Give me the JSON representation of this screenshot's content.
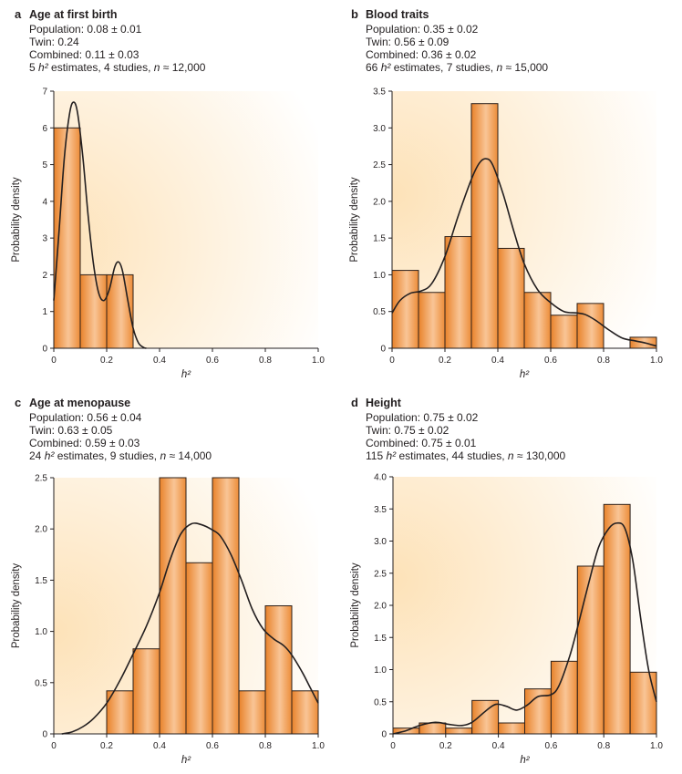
{
  "figure": {
    "accent_colors": {
      "bar_edge": "#e8832a",
      "bar_center": "#f9c596",
      "bar_stroke": "#3a2a1e",
      "background_warm": "#fde6c0",
      "curve": "#231f20"
    }
  },
  "chart_data": [
    {
      "id": "a",
      "type": "bar",
      "letter": "a",
      "title": "Age at first birth",
      "stats": {
        "population": "Population: 0.08 ± 0.01",
        "twin": "Twin: 0.24",
        "combined": "Combined: 0.11 ± 0.03",
        "summary_count": "5",
        "summary_rest": " estimates, 4 studies, ",
        "summary_n": "≈ 12,000"
      },
      "xlabel": "h²",
      "ylabel": "Probability density",
      "xlim": [
        0,
        1.0
      ],
      "ylim": [
        0,
        7
      ],
      "xticks": [
        "0",
        "0.2",
        "0.4",
        "0.6",
        "0.8",
        "1.0"
      ],
      "xtick_values": [
        0,
        0.2,
        0.4,
        0.6,
        0.8,
        1.0
      ],
      "yticks": [
        "0",
        "1",
        "2",
        "3",
        "4",
        "5",
        "6",
        "7"
      ],
      "ytick_values": [
        0,
        1,
        2,
        3,
        4,
        5,
        6,
        7
      ],
      "bin_edges": [
        0,
        0.1,
        0.2,
        0.3,
        0.4,
        0.5,
        0.6,
        0.7,
        0.8,
        0.9,
        1.0
      ],
      "values": [
        6,
        2,
        2,
        0,
        0,
        0,
        0,
        0,
        0,
        0
      ],
      "density_curve": [
        [
          0,
          1.3
        ],
        [
          0.02,
          3.2
        ],
        [
          0.04,
          5.2
        ],
        [
          0.06,
          6.4
        ],
        [
          0.075,
          6.7
        ],
        [
          0.09,
          6.4
        ],
        [
          0.11,
          5.2
        ],
        [
          0.13,
          3.6
        ],
        [
          0.15,
          2.3
        ],
        [
          0.17,
          1.5
        ],
        [
          0.19,
          1.3
        ],
        [
          0.21,
          1.6
        ],
        [
          0.23,
          2.2
        ],
        [
          0.245,
          2.35
        ],
        [
          0.26,
          2.1
        ],
        [
          0.28,
          1.3
        ],
        [
          0.3,
          0.55
        ],
        [
          0.32,
          0.15
        ],
        [
          0.34,
          0.02
        ],
        [
          0.35,
          0
        ]
      ]
    },
    {
      "id": "b",
      "type": "bar",
      "letter": "b",
      "title": "Blood traits",
      "stats": {
        "population": "Population: 0.35 ± 0.02",
        "twin": "Twin: 0.56 ± 0.09",
        "combined": "Combined: 0.36 ± 0.02",
        "summary_count": "66",
        "summary_rest": " estimates, 7 studies, ",
        "summary_n": "≈ 15,000"
      },
      "xlabel": "h²",
      "ylabel": "Probability density",
      "xlim": [
        0,
        1.0
      ],
      "ylim": [
        0,
        3.5
      ],
      "xticks": [
        "0",
        "0.2",
        "0.4",
        "0.6",
        "0.8",
        "1.0"
      ],
      "xtick_values": [
        0,
        0.2,
        0.4,
        0.6,
        0.8,
        1.0
      ],
      "yticks": [
        "0",
        "0.5",
        "1.0",
        "1.5",
        "2.0",
        "2.5",
        "3.0",
        "3.5"
      ],
      "ytick_values": [
        0,
        0.5,
        1.0,
        1.5,
        2.0,
        2.5,
        3.0,
        3.5
      ],
      "bin_edges": [
        0,
        0.1,
        0.2,
        0.3,
        0.4,
        0.5,
        0.6,
        0.7,
        0.8,
        0.9,
        1.0
      ],
      "values": [
        1.06,
        0.76,
        1.52,
        3.33,
        1.36,
        0.76,
        0.45,
        0.61,
        0,
        0.15
      ],
      "density_curve": [
        [
          0,
          0.48
        ],
        [
          0.03,
          0.65
        ],
        [
          0.07,
          0.75
        ],
        [
          0.11,
          0.78
        ],
        [
          0.15,
          0.88
        ],
        [
          0.2,
          1.25
        ],
        [
          0.25,
          1.8
        ],
        [
          0.3,
          2.3
        ],
        [
          0.33,
          2.52
        ],
        [
          0.355,
          2.58
        ],
        [
          0.38,
          2.5
        ],
        [
          0.42,
          2.1
        ],
        [
          0.46,
          1.6
        ],
        [
          0.5,
          1.15
        ],
        [
          0.55,
          0.8
        ],
        [
          0.6,
          0.62
        ],
        [
          0.65,
          0.5
        ],
        [
          0.7,
          0.48
        ],
        [
          0.73,
          0.46
        ],
        [
          0.77,
          0.38
        ],
        [
          0.82,
          0.25
        ],
        [
          0.87,
          0.14
        ],
        [
          0.92,
          0.1
        ],
        [
          0.96,
          0.07
        ],
        [
          1.0,
          0.03
        ]
      ]
    },
    {
      "id": "c",
      "type": "bar",
      "letter": "c",
      "title": "Age at menopause",
      "stats": {
        "population": "Population: 0.56 ± 0.04",
        "twin": "Twin: 0.63 ± 0.05",
        "combined": "Combined: 0.59 ± 0.03",
        "summary_count": "24",
        "summary_rest": " estimates, 9 studies, ",
        "summary_n": "≈ 14,000"
      },
      "xlabel": "h²",
      "ylabel": "Probability density",
      "xlim": [
        0,
        1.0
      ],
      "ylim": [
        0,
        2.5
      ],
      "xticks": [
        "0",
        "0.2",
        "0.4",
        "0.6",
        "0.8",
        "1.0"
      ],
      "xtick_values": [
        0,
        0.2,
        0.4,
        0.6,
        0.8,
        1.0
      ],
      "yticks": [
        "0",
        "0.5",
        "1.0",
        "1.5",
        "2.0",
        "2.5"
      ],
      "ytick_values": [
        0,
        0.5,
        1.0,
        1.5,
        2.0,
        2.5
      ],
      "bin_edges": [
        0,
        0.1,
        0.2,
        0.3,
        0.4,
        0.5,
        0.6,
        0.7,
        0.8,
        0.9,
        1.0
      ],
      "values": [
        0,
        0,
        0.42,
        0.83,
        2.5,
        1.67,
        2.5,
        0.42,
        1.25,
        0.42
      ],
      "density_curve": [
        [
          0.03,
          0
        ],
        [
          0.07,
          0.02
        ],
        [
          0.11,
          0.07
        ],
        [
          0.15,
          0.15
        ],
        [
          0.2,
          0.3
        ],
        [
          0.25,
          0.52
        ],
        [
          0.3,
          0.78
        ],
        [
          0.35,
          1.05
        ],
        [
          0.4,
          1.38
        ],
        [
          0.44,
          1.7
        ],
        [
          0.48,
          1.95
        ],
        [
          0.52,
          2.05
        ],
        [
          0.56,
          2.04
        ],
        [
          0.6,
          1.99
        ],
        [
          0.63,
          1.93
        ],
        [
          0.67,
          1.75
        ],
        [
          0.71,
          1.5
        ],
        [
          0.75,
          1.22
        ],
        [
          0.79,
          1.03
        ],
        [
          0.83,
          0.93
        ],
        [
          0.87,
          0.86
        ],
        [
          0.9,
          0.77
        ],
        [
          0.94,
          0.6
        ],
        [
          0.97,
          0.45
        ],
        [
          1.0,
          0.3
        ]
      ]
    },
    {
      "id": "d",
      "type": "bar",
      "letter": "d",
      "title": "Height",
      "stats": {
        "population": "Population: 0.75 ± 0.02",
        "twin": "Twin: 0.75 ± 0.02",
        "combined": "Combined: 0.75 ± 0.01",
        "summary_count": "115",
        "summary_rest": " estimates, 44 studies, ",
        "summary_n": "≈ 130,000"
      },
      "xlabel": "h²",
      "ylabel": "Probability density",
      "xlim": [
        0,
        1.0
      ],
      "ylim": [
        0,
        4.0
      ],
      "xticks": [
        "0",
        "0.2",
        "0.4",
        "0.6",
        "0.8",
        "1.0"
      ],
      "xtick_values": [
        0,
        0.2,
        0.4,
        0.6,
        0.8,
        1.0
      ],
      "yticks": [
        "0",
        "0.5",
        "1.0",
        "1.5",
        "2.0",
        "2.5",
        "3.0",
        "3.5",
        "4.0"
      ],
      "ytick_values": [
        0,
        0.5,
        1.0,
        1.5,
        2.0,
        2.5,
        3.0,
        3.5,
        4.0
      ],
      "bin_edges": [
        0,
        0.1,
        0.2,
        0.3,
        0.4,
        0.5,
        0.6,
        0.7,
        0.8,
        0.9,
        1.0
      ],
      "values": [
        0.09,
        0.17,
        0.09,
        0.52,
        0.17,
        0.7,
        1.13,
        2.61,
        3.57,
        0.96
      ],
      "density_curve": [
        [
          0,
          0
        ],
        [
          0.05,
          0.05
        ],
        [
          0.1,
          0.13
        ],
        [
          0.16,
          0.18
        ],
        [
          0.21,
          0.15
        ],
        [
          0.26,
          0.13
        ],
        [
          0.3,
          0.18
        ],
        [
          0.35,
          0.35
        ],
        [
          0.39,
          0.46
        ],
        [
          0.43,
          0.43
        ],
        [
          0.47,
          0.37
        ],
        [
          0.51,
          0.45
        ],
        [
          0.55,
          0.58
        ],
        [
          0.6,
          0.61
        ],
        [
          0.63,
          0.75
        ],
        [
          0.67,
          1.2
        ],
        [
          0.7,
          1.65
        ],
        [
          0.74,
          2.3
        ],
        [
          0.78,
          2.9
        ],
        [
          0.82,
          3.2
        ],
        [
          0.85,
          3.28
        ],
        [
          0.88,
          3.2
        ],
        [
          0.91,
          2.7
        ],
        [
          0.94,
          1.8
        ],
        [
          0.97,
          1.0
        ],
        [
          1.0,
          0.5
        ]
      ]
    }
  ]
}
